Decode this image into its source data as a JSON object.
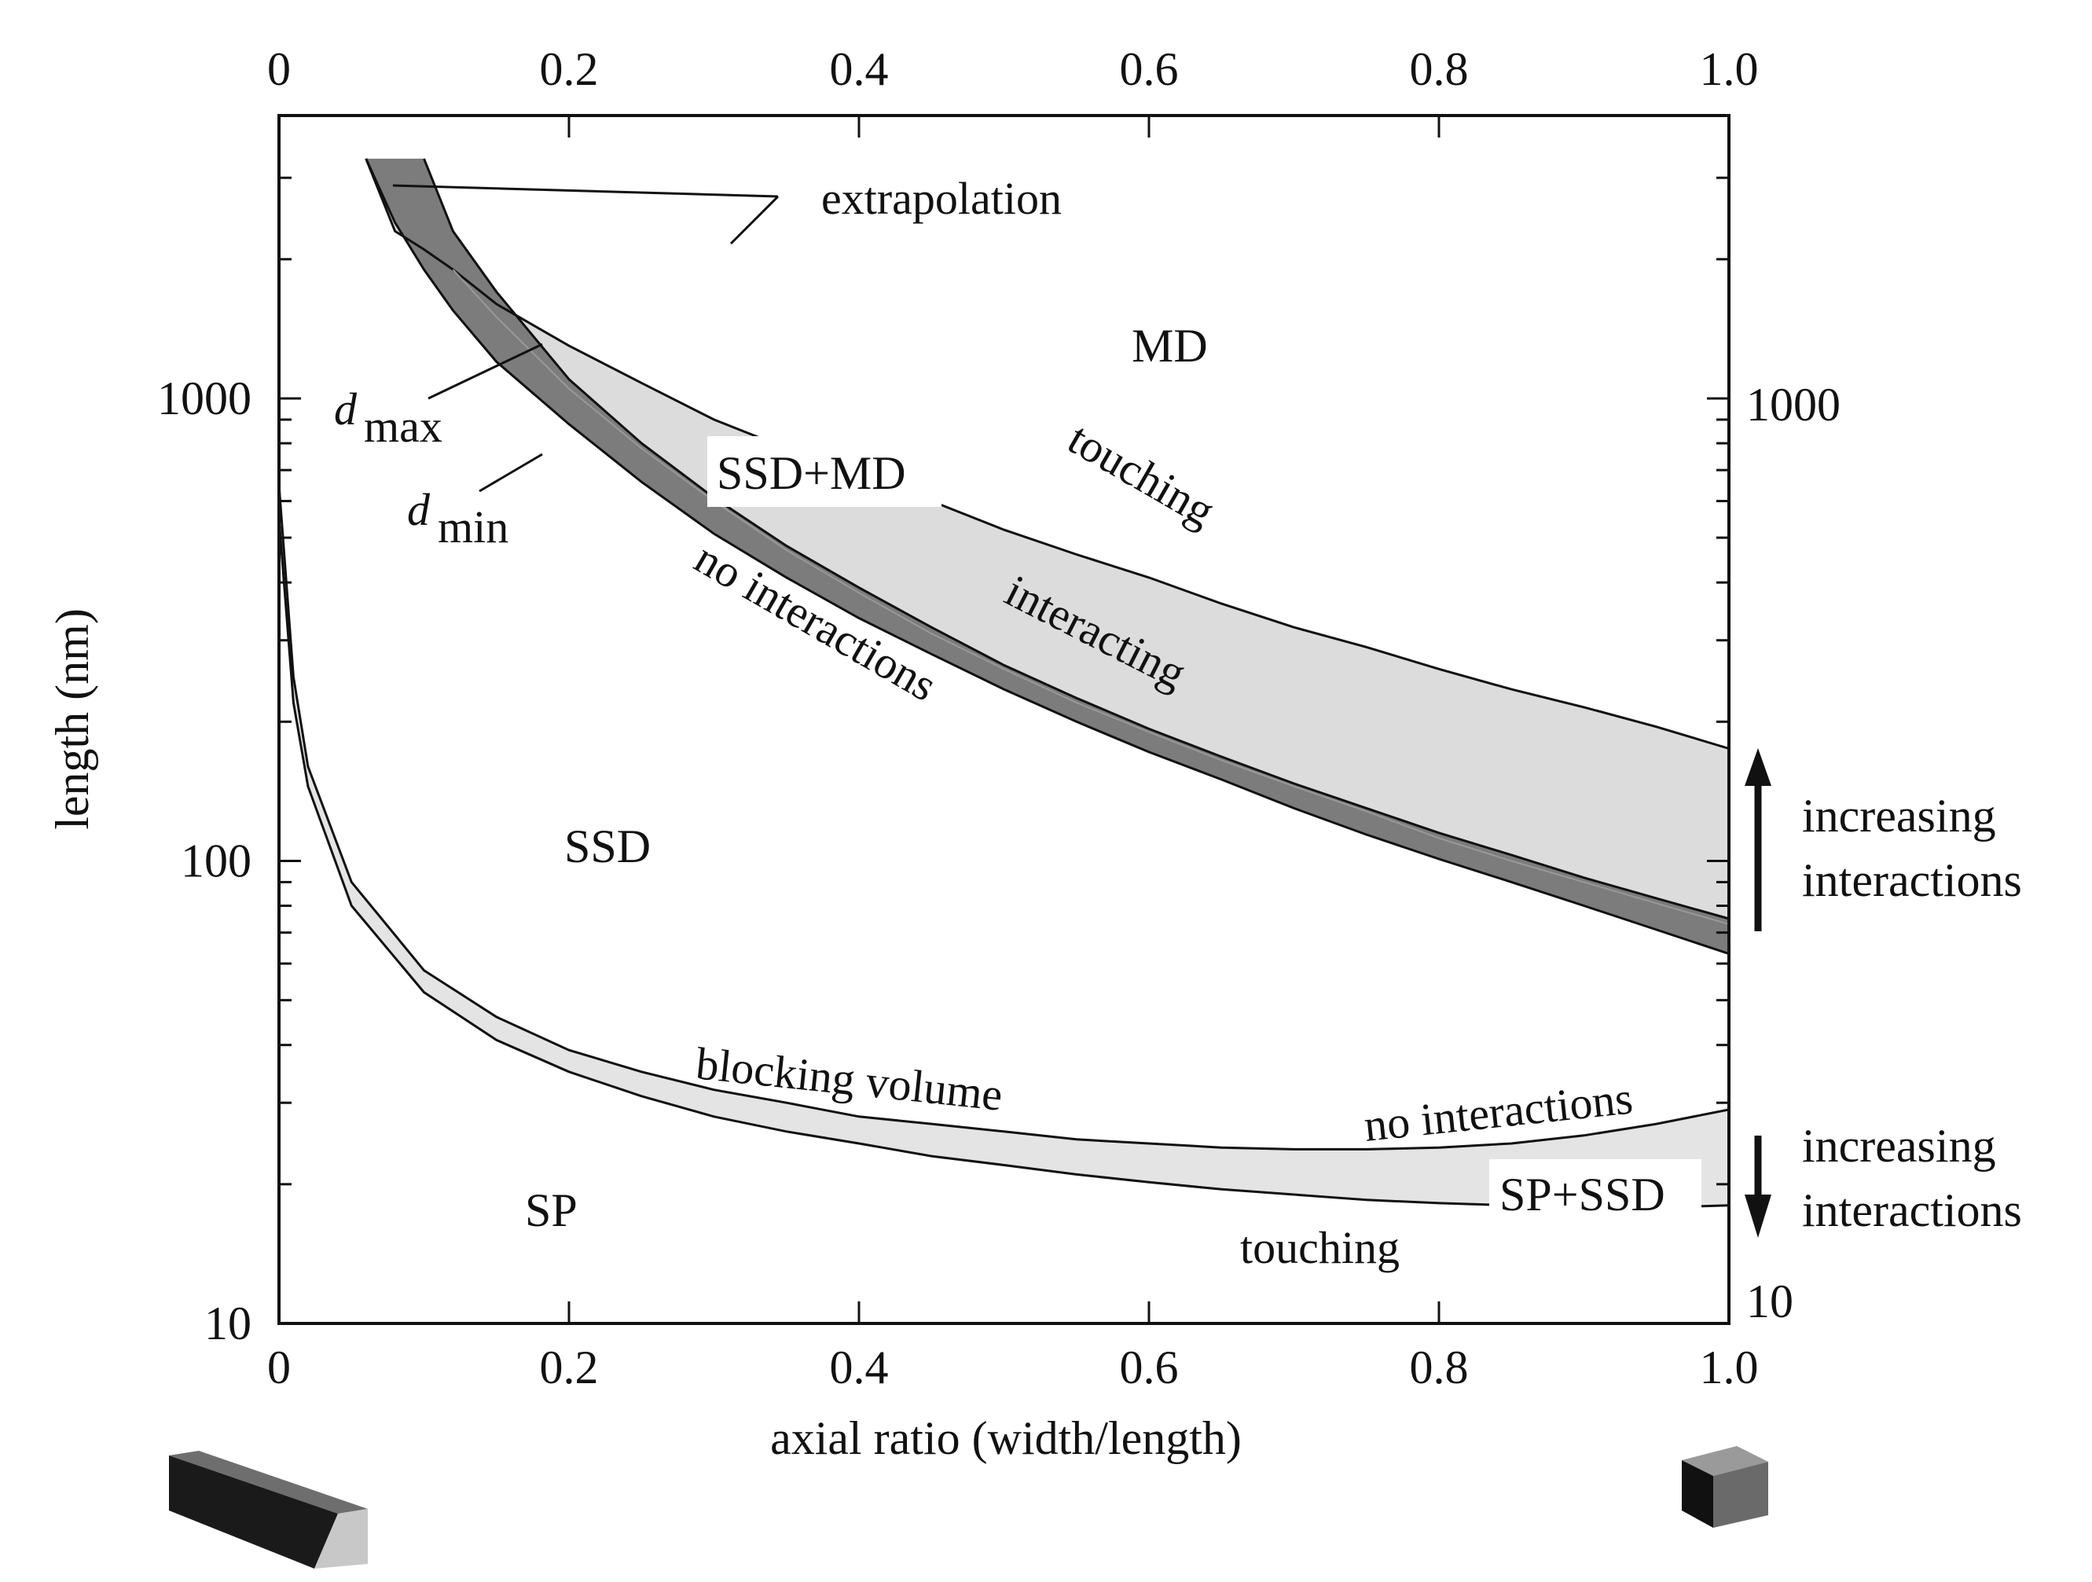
{
  "chart_data": {
    "type": "area",
    "xlabel": "axial ratio (width/length)",
    "ylabel": "length (nm)",
    "x_scale": "linear",
    "y_scale": "log",
    "xlim": [
      0,
      1.0
    ],
    "ylim": [
      10,
      3300
    ],
    "x_ticks": [
      "0",
      "0.2",
      "0.4",
      "0.6",
      "0.8",
      "1.0"
    ],
    "x_tick_values": [
      0,
      0.2,
      0.4,
      0.6,
      0.8,
      1.0
    ],
    "y_ticks_left": [
      "10",
      "100",
      "1000"
    ],
    "y_ticks_right": [
      "10",
      "1000"
    ],
    "series": [
      {
        "name": "MD touching",
        "x": [
          0.06,
          0.08,
          0.1,
          0.12,
          0.15,
          0.2,
          0.25,
          0.3,
          0.35,
          0.4,
          0.45,
          0.5,
          0.55,
          0.6,
          0.65,
          0.7,
          0.75,
          0.8,
          0.85,
          0.9,
          0.95,
          1.0
        ],
        "y": [
          3300,
          2300,
          2100,
          1900,
          1600,
          1300,
          1080,
          900,
          780,
          680,
          600,
          520,
          460,
          410,
          360,
          320,
          290,
          260,
          235,
          215,
          195,
          175
        ]
      },
      {
        "name": "interacting upper",
        "x": [
          0.12,
          0.15,
          0.2,
          0.25,
          0.3,
          0.35,
          0.4,
          0.45,
          0.5,
          0.55,
          0.6,
          0.65,
          0.7,
          0.75,
          0.8,
          0.85,
          0.9,
          0.95,
          1.0
        ],
        "y": [
          1900,
          1500,
          1050,
          780,
          600,
          470,
          380,
          310,
          260,
          220,
          190,
          165,
          145,
          128,
          112,
          100,
          90,
          81,
          73
        ]
      },
      {
        "name": "d_max",
        "x": [
          0.1,
          0.12,
          0.15,
          0.2,
          0.25,
          0.3,
          0.35,
          0.4,
          0.45,
          0.5,
          0.55,
          0.6,
          0.65,
          0.7,
          0.75,
          0.8,
          0.85,
          0.9,
          0.95,
          1.0
        ],
        "y": [
          3300,
          2300,
          1700,
          1100,
          800,
          610,
          480,
          390,
          320,
          265,
          225,
          193,
          168,
          147,
          130,
          115,
          103,
          92,
          83,
          75
        ]
      },
      {
        "name": "d_min",
        "x": [
          0.06,
          0.08,
          0.1,
          0.12,
          0.15,
          0.2,
          0.25,
          0.3,
          0.35,
          0.4,
          0.45,
          0.5,
          0.55,
          0.6,
          0.65,
          0.7,
          0.75,
          0.8,
          0.85,
          0.9,
          0.95,
          1.0
        ],
        "y": [
          3300,
          2400,
          1900,
          1550,
          1200,
          880,
          660,
          510,
          410,
          335,
          280,
          235,
          200,
          172,
          150,
          130,
          114,
          101,
          90,
          80,
          71,
          63
        ]
      },
      {
        "name": "blocking volume (SP/SSD no interactions)",
        "x": [
          0,
          0.01,
          0.02,
          0.05,
          0.1,
          0.15,
          0.2,
          0.25,
          0.3,
          0.35,
          0.4,
          0.45,
          0.5,
          0.55,
          0.6,
          0.65,
          0.7,
          0.75,
          0.8,
          0.85,
          0.9,
          0.95,
          1.0
        ],
        "y": [
          650,
          250,
          160,
          90,
          58,
          46,
          39,
          35,
          32,
          30,
          28,
          27,
          26,
          25,
          24.5,
          24,
          23.8,
          23.8,
          24,
          24.5,
          25.5,
          27,
          29
        ]
      },
      {
        "name": "touching (SP)",
        "x": [
          0,
          0.01,
          0.02,
          0.05,
          0.1,
          0.15,
          0.2,
          0.25,
          0.3,
          0.35,
          0.4,
          0.45,
          0.5,
          0.55,
          0.6,
          0.65,
          0.7,
          0.75,
          0.8,
          0.85,
          0.9,
          0.95,
          1.0
        ],
        "y": [
          550,
          220,
          145,
          80,
          52,
          41,
          35,
          31,
          28,
          26,
          24.5,
          23,
          22,
          21,
          20.2,
          19.5,
          19,
          18.5,
          18.2,
          18,
          17.8,
          17.8,
          18
        ]
      }
    ],
    "regions": [
      "MD",
      "SSD+MD",
      "SSD",
      "SP",
      "SP+SSD"
    ],
    "annotations": {
      "extrapolation": "extrapolation",
      "touching_top": "touching",
      "interacting": "interacting",
      "no_interactions_top": "no interactions",
      "blocking_volume": "blocking volume",
      "no_interactions_bottom": "no interactions",
      "touching_bottom": "touching",
      "d_max": "d",
      "d_max_sub": "max",
      "d_min": "d",
      "d_min_sub": "min",
      "increasing_up_1": "increasing",
      "increasing_up_2": "interactions",
      "increasing_down_1": "increasing",
      "increasing_down_2": "interactions"
    },
    "colors": {
      "light_band": "#dcdcdc",
      "dark_band": "#7c7c7c",
      "lower_band": "#e4e4e4",
      "line": "#111111"
    }
  }
}
